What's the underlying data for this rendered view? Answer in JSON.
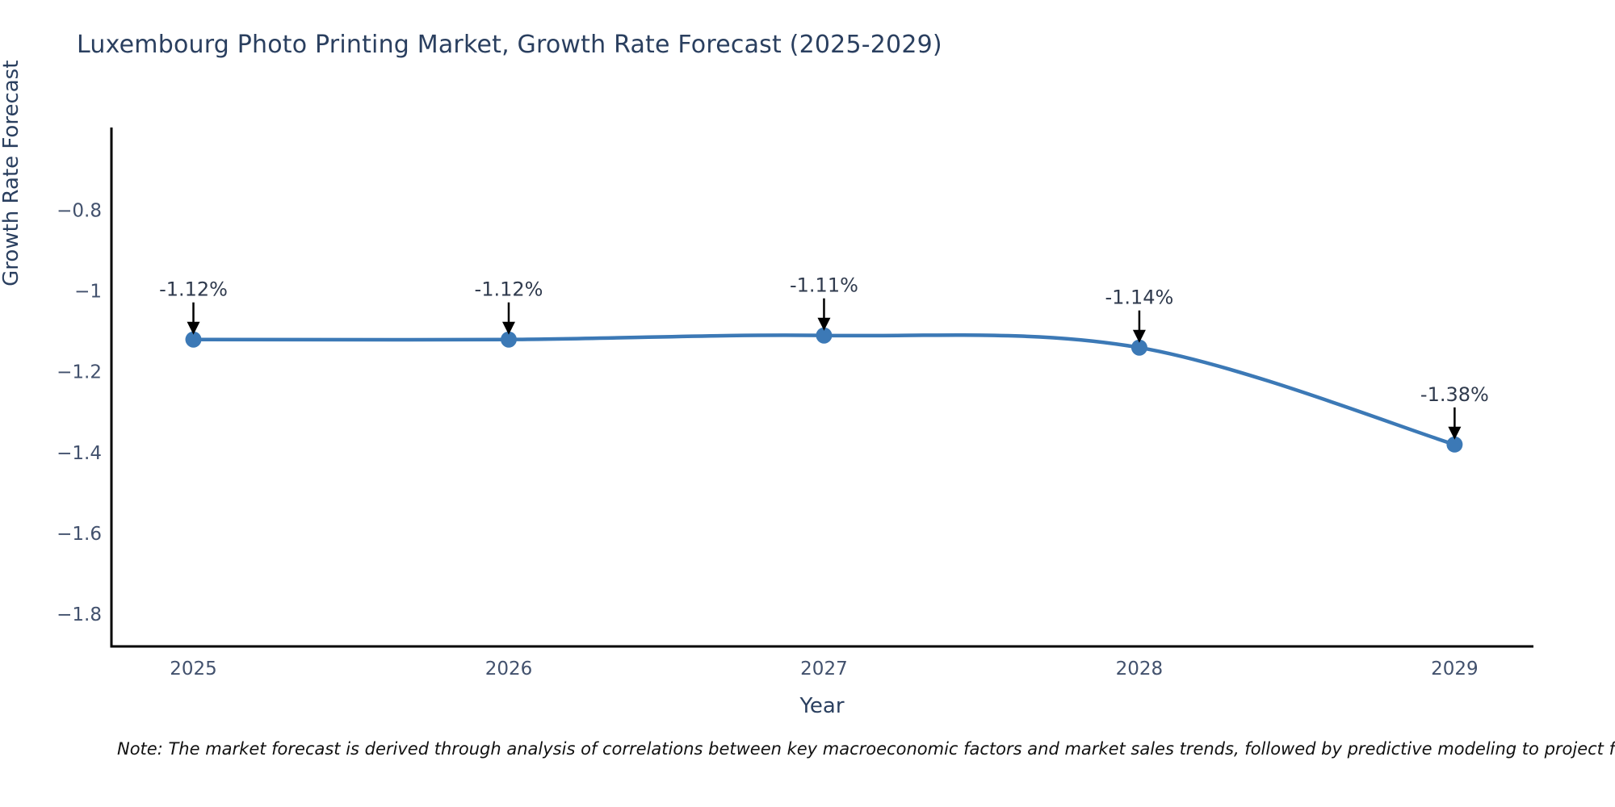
{
  "title": "Luxembourg Photo Printing Market, Growth Rate Forecast (2025-2029)",
  "note": "Note: The market forecast is derived through analysis of correlations between key macroeconomic factors and market sales trends, followed by predictive modeling to project future sales.",
  "colors": {
    "title": "#2a3f5f",
    "tick": "#42516d",
    "axis_line": "#000000",
    "line": "#3c79b6",
    "marker": "#3c79b6",
    "annotation_text": "#2f3a4d",
    "arrow": "#000000",
    "background": "#ffffff"
  },
  "chart_data": {
    "type": "line",
    "title": "Luxembourg Photo Printing Market, Growth Rate Forecast (2025-2029)",
    "xlabel": "Year",
    "ylabel": "Growth Rate Forecast",
    "x": [
      2025,
      2026,
      2027,
      2028,
      2029
    ],
    "y": [
      -1.12,
      -1.12,
      -1.11,
      -1.14,
      -1.38
    ],
    "point_labels": [
      "-1.12%",
      "-1.12%",
      "-1.11%",
      "-1.14%",
      "-1.38%"
    ],
    "xtick_values": [
      2025,
      2026,
      2027,
      2028,
      2029
    ],
    "xtick_labels": [
      "2025",
      "2026",
      "2027",
      "2028",
      "2029"
    ],
    "ytick_values": [
      -0.8,
      -1.0,
      -1.2,
      -1.4,
      -1.6,
      -1.8
    ],
    "ytick_labels": [
      "−0.8",
      "−1",
      "−1.2",
      "−1.4",
      "−1.6",
      "−1.8"
    ],
    "xlim": [
      2024.74,
      2029.25
    ],
    "ylim": [
      -1.88,
      -0.595
    ],
    "grid": false,
    "legend": null,
    "line_shape": "spline",
    "units": "percent"
  }
}
